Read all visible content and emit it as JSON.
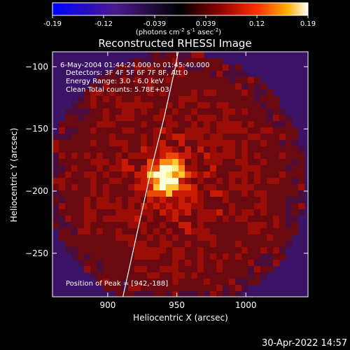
{
  "chart_data": {
    "type": "heatmap",
    "title": "Reconstructed RHESSI Image",
    "xlabel": "Heliocentric X (arcsec)",
    "ylabel": "Heliocentric Y (arcsec)",
    "xlim": [
      860,
      1045
    ],
    "ylim": [
      -285,
      -88
    ],
    "xticks": [
      900,
      950,
      1000
    ],
    "yticks": [
      -100,
      -150,
      -200,
      -250
    ],
    "colorbar": {
      "ticks": [
        "-0.19",
        "-0.12",
        "-0.039",
        "0.039",
        "0.12",
        "0.19"
      ],
      "range": [
        -0.19,
        0.19
      ],
      "unit_text": "(photons cm",
      "unit_exp1": "-2",
      "unit_mid": " s",
      "unit_exp2": "-1",
      "unit_mid2": " asec",
      "unit_exp3": "-2",
      "unit_end": ")"
    },
    "annotations": {
      "time": "6-May-2004 01:44:24.000 to 01:45:40.000",
      "detectors": "Detectors: 3F 4F 5F 6F 7F 8F, Att 0",
      "energy": "Energy Range: 3.0 - 6.0 keV",
      "clean": "Clean     Total counts: 5.78E+03",
      "peak": "Position of Peak = [942,-188]"
    },
    "peak": {
      "x": 942,
      "y": -188
    },
    "limb_curve": [
      [
        911,
        -285
      ],
      [
        922,
        -230
      ],
      [
        932,
        -180
      ],
      [
        941,
        -140
      ],
      [
        949,
        -100
      ],
      [
        951,
        -88
      ]
    ]
  },
  "footer": {
    "date": "30-Apr-2022 14:57"
  }
}
